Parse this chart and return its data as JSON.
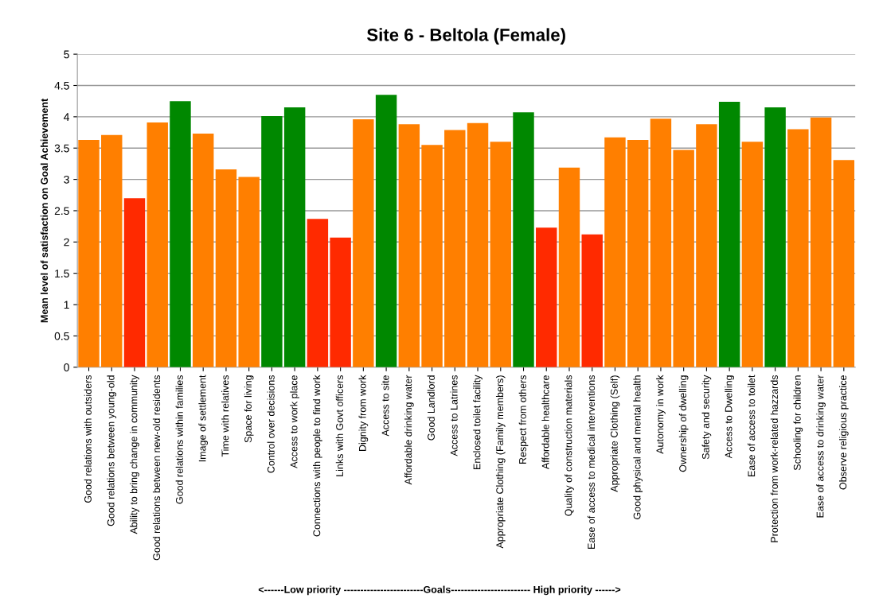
{
  "chart_data": {
    "type": "bar",
    "title": "Site 6 - Beltola (Female)",
    "ylabel": "Mean level of satisfaction on Goal Achievement",
    "xlabel": "<------Low priority ------------------------Goals------------------------ High priority ------>",
    "categories": [
      "Good relations with outsiders",
      "Good relations between young-old",
      "Ability to bring change in community",
      "Good relations between new-old residents",
      "Good relations within families",
      "Image of settlement",
      "Time with relatives",
      "Space for living",
      "Control over decisions",
      "Access to work place",
      "Connections with people to find work",
      "Links with Govt officers",
      "Dignity from work",
      "Access to site",
      "Affordable drinking water",
      "Good Landlord",
      "Access to Latrines",
      "Enclosed toilet facility",
      "Appropriate Clothing (Family members)",
      "Respect from others",
      "Affordable healthcare",
      "Quality of construction materials",
      "Ease of access to medical interventions",
      "Appropriate Clothing (Self)",
      "Good physical and mental health",
      "Autonomy in work",
      "Ownership of dwelling",
      "Safety and security",
      "Access to Dwelling",
      "Ease of access to toilet",
      "Protection from work-related hazzards",
      "Schooling for children",
      "Ease of access to drinking water",
      "Observe religious practice"
    ],
    "values": [
      3.63,
      3.71,
      2.7,
      3.91,
      4.25,
      3.73,
      3.16,
      3.04,
      4.01,
      4.15,
      2.37,
      2.07,
      3.96,
      4.35,
      3.88,
      3.55,
      3.79,
      3.9,
      3.6,
      4.07,
      2.23,
      3.19,
      2.12,
      3.67,
      3.63,
      3.97,
      3.47,
      3.88,
      4.24,
      3.6,
      4.15,
      3.8,
      3.99,
      3.31
    ],
    "colors": [
      "#ff7f00",
      "#ff7f00",
      "#ff2a00",
      "#ff7f00",
      "#008800",
      "#ff7f00",
      "#ff7f00",
      "#ff7f00",
      "#008800",
      "#008800",
      "#ff2a00",
      "#ff2a00",
      "#ff7f00",
      "#008800",
      "#ff7f00",
      "#ff7f00",
      "#ff7f00",
      "#ff7f00",
      "#ff7f00",
      "#008800",
      "#ff2a00",
      "#ff7f00",
      "#ff2a00",
      "#ff7f00",
      "#ff7f00",
      "#ff7f00",
      "#ff7f00",
      "#ff7f00",
      "#008800",
      "#ff7f00",
      "#008800",
      "#ff7f00",
      "#ff7f00",
      "#ff7f00"
    ],
    "ylim": [
      0,
      5
    ],
    "yticks": [
      0,
      0.5,
      1,
      1.5,
      2,
      2.5,
      3,
      3.5,
      4,
      4.5,
      5
    ],
    "grid": "y"
  }
}
